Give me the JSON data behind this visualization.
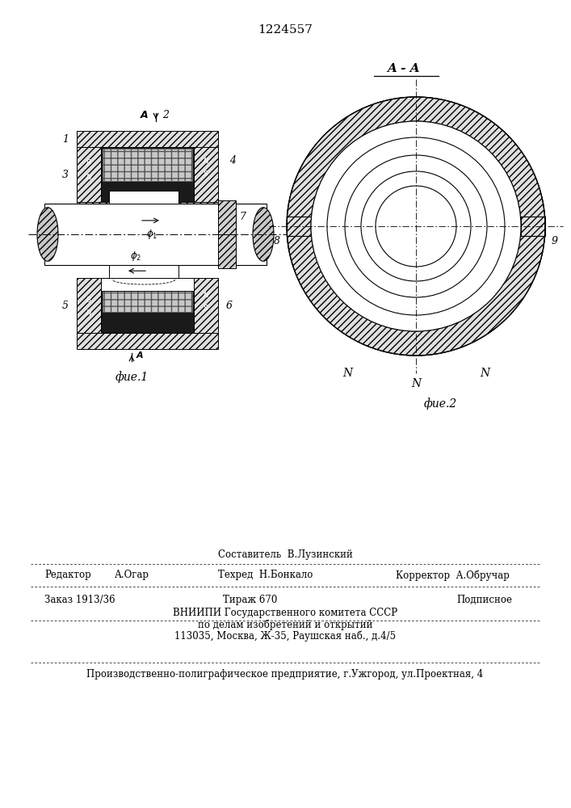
{
  "patent_number": "1224557",
  "bg_color": "#ffffff",
  "line_color": "#000000",
  "fig1_caption": "фие.1",
  "fig2_caption": "фие.2",
  "section_label": "A - A",
  "footer_vnipi": "ВНИИПИ Государственного комитета СССР",
  "footer_affairs": "по делам изобретений и открытий",
  "footer_address": "113035, Москва, Ж-35, Раушская наб., д.4/5",
  "footer_production": "Производственно-полиграфическое предприятие, г.Ужгород, ул.Проектная, 4"
}
